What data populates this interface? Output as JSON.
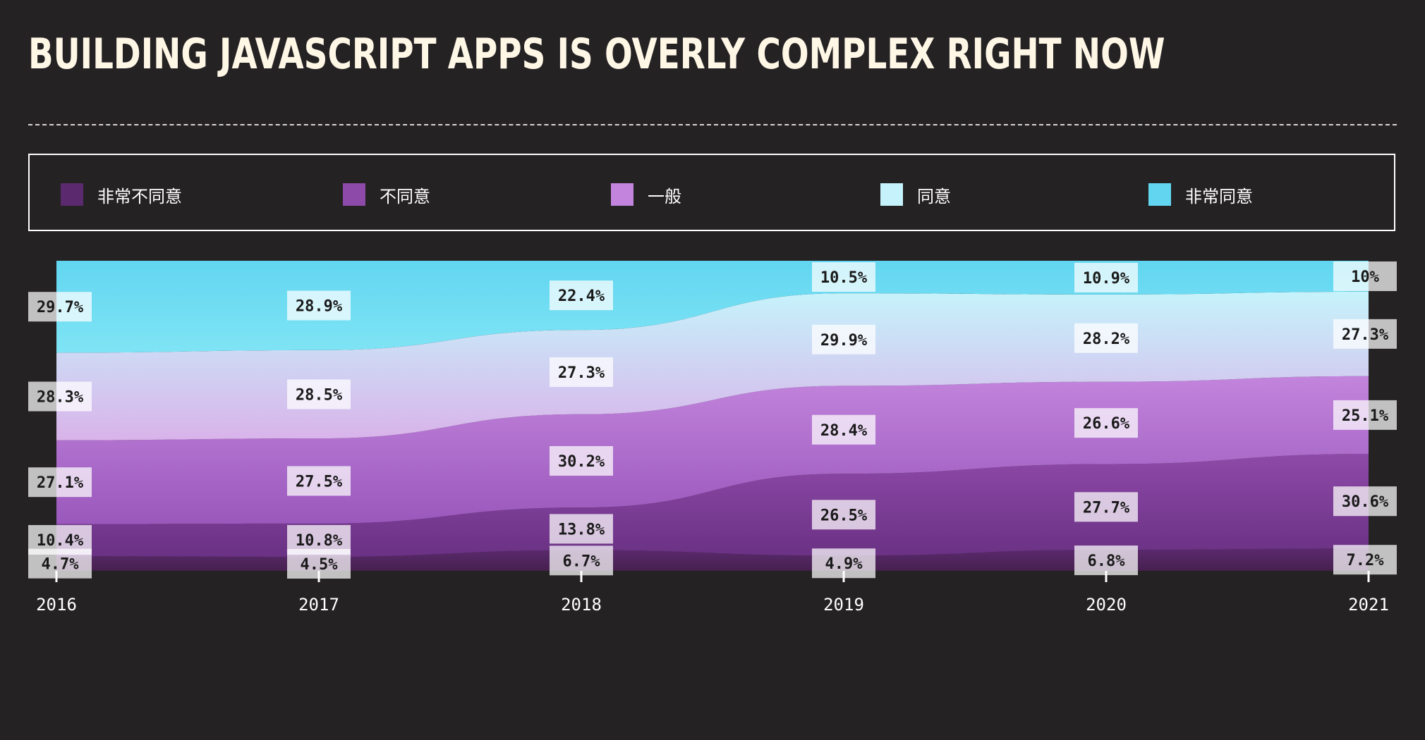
{
  "title": "BUILDING JAVASCRIPT APPS IS OVERLY COMPLEX RIGHT NOW",
  "chart_data": {
    "type": "area",
    "stacked": "100%",
    "x": [
      "2016",
      "2017",
      "2018",
      "2019",
      "2020",
      "2021"
    ],
    "series": [
      {
        "name": "非常不同意",
        "color": "#5b2a6e",
        "values": [
          4.7,
          4.5,
          6.7,
          4.9,
          6.8,
          7.2
        ],
        "labels": [
          "4.7%",
          "4.5%",
          "6.7%",
          "4.9%",
          "6.8%",
          "7.2%"
        ]
      },
      {
        "name": "不同意",
        "color": "#8e4aa8",
        "values": [
          10.4,
          10.8,
          13.8,
          26.5,
          27.7,
          30.6
        ],
        "labels": [
          "10.4%",
          "10.8%",
          "13.8%",
          "26.5%",
          "27.7%",
          "30.6%"
        ]
      },
      {
        "name": "一般",
        "color": "#c284dc",
        "values": [
          27.1,
          27.5,
          30.2,
          28.4,
          26.6,
          25.1
        ],
        "labels": [
          "27.1%",
          "27.5%",
          "30.2%",
          "28.4%",
          "26.6%",
          "25.1%"
        ]
      },
      {
        "name": "同意",
        "color": "#c6f3fb",
        "values": [
          28.3,
          28.5,
          27.3,
          29.9,
          28.2,
          27.3
        ],
        "labels": [
          "28.3%",
          "28.5%",
          "27.3%",
          "29.9%",
          "28.2%",
          "27.3%"
        ]
      },
      {
        "name": "非常同意",
        "color": "#62d6f0",
        "values": [
          29.7,
          28.9,
          22.4,
          10.5,
          10.9,
          10.0
        ],
        "labels": [
          "29.7%",
          "28.9%",
          "22.4%",
          "10.5%",
          "10.9%",
          "10%"
        ]
      }
    ],
    "ylim": [
      0,
      100
    ],
    "legend_position": "top",
    "grid": false
  }
}
